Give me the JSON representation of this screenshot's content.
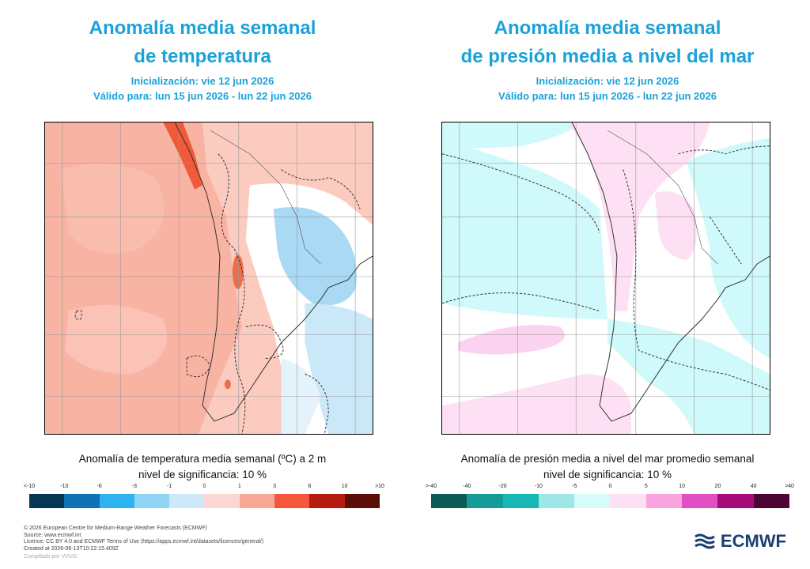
{
  "left_panel": {
    "title_line1": "Anomalía media semanal",
    "title_line2": "de temperatura",
    "init": "Inicialización: vie 12 jun 2026",
    "valid": "Válido para: lun 15 jun 2026 - lun 22 jun 2026",
    "caption": "Anomalía de temperatura media semanal (ºC) a 2 m",
    "significance": "nivel de significancia: 10 %",
    "legend_ticks": [
      "<-10",
      "-10",
      "-6",
      "-3",
      "-1",
      "0",
      "1",
      "3",
      "6",
      "10",
      ">10"
    ],
    "legend_colors": [
      "#063556",
      "#0f73b8",
      "#2fb2f0",
      "#8fd3f5",
      "#cde9f8",
      "#fcd7d1",
      "#f9a896",
      "#f6573a",
      "#b61b0f",
      "#5c0d07"
    ]
  },
  "right_panel": {
    "title_line1": "Anomalía media semanal",
    "title_line2": "de presión media a nivel del mar",
    "init": "Inicialización: vie 12 jun 2026",
    "valid": "Válido para: lun 15 jun 2026 - lun 22 jun 2026",
    "caption": "Anomalía de presión media a nivel del mar promedio semanal",
    "significance": "nivel de significancia: 10 %",
    "legend_ticks": [
      ">-40",
      "-40",
      "-20",
      "-10",
      "-5",
      "0",
      "5",
      "10",
      "20",
      "40",
      ">40"
    ],
    "legend_colors": [
      "#0b5b56",
      "#169b96",
      "#17b8b3",
      "#9fe6e6",
      "#d6fbfb",
      "#fde0f4",
      "#f9a3df",
      "#e24fc2",
      "#a50c79",
      "#4d0534"
    ]
  },
  "footer": {
    "line1": "© 2026 European Centre for Medium-Range Weather Forecasts (ECMWF)",
    "line2": "Source: www.ecmwf.int",
    "line3": "Licence: CC BY 4.0 and ECMWF Terms of Use (https://apps.ecmwf.int/datasets/licences/general/)",
    "line4": "Created at 2026-06-13T10:22:15.409Z",
    "credit": "Compilado por VVUG"
  },
  "logo_text": "ECMWF"
}
